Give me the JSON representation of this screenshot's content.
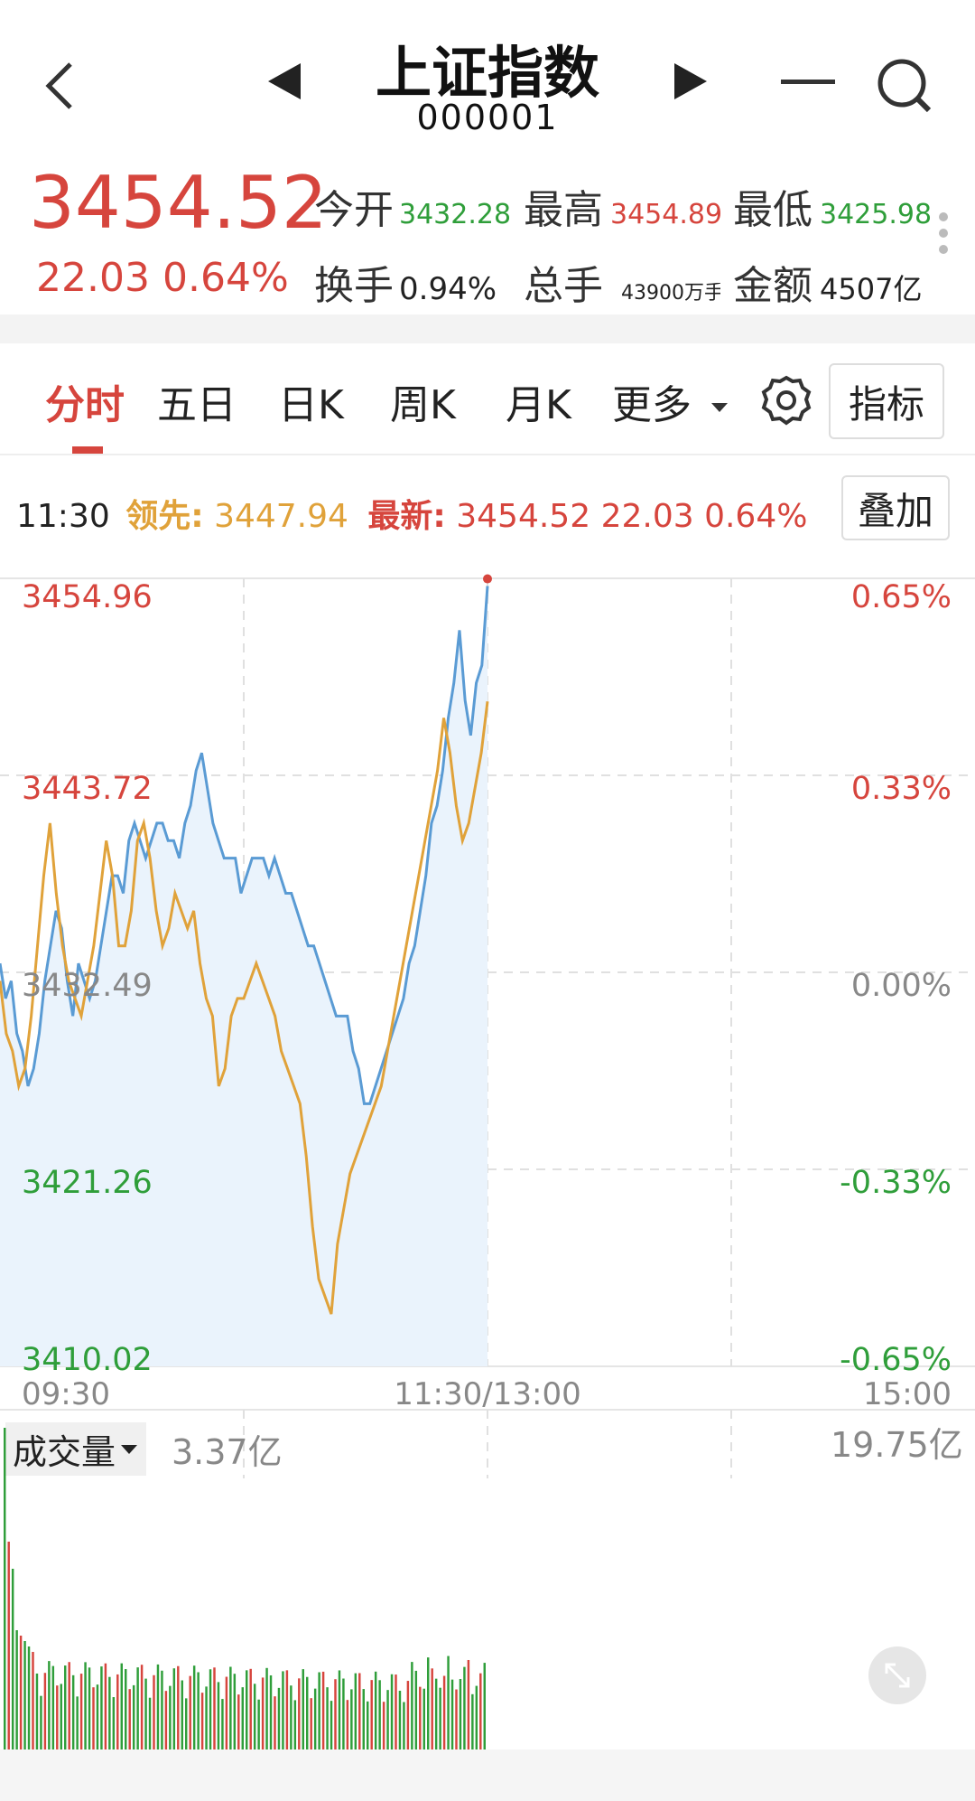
{
  "header": {
    "title": "上证指数",
    "code": "000001"
  },
  "quote": {
    "price": "3454.52",
    "change": "22.03",
    "change_pct": "0.64%",
    "open_label": "今开",
    "open_value": "3432.28",
    "high_label": "最高",
    "high_value": "3454.89",
    "low_label": "最低",
    "low_value": "3425.98",
    "turnover_label": "换手",
    "turnover_value": "0.94%",
    "volume_label": "总手",
    "volume_value": "43900万手",
    "amount_label": "金额",
    "amount_value": "4507亿"
  },
  "tabs": [
    {
      "label": "分时",
      "active": true
    },
    {
      "label": "五日"
    },
    {
      "label": "日K"
    },
    {
      "label": "周K"
    },
    {
      "label": "月K"
    },
    {
      "label": "更多"
    }
  ],
  "indicator_button": "指标",
  "info_bar": {
    "time": "11:30",
    "lead_label": "领先:",
    "lead_value": "3447.94",
    "latest_label": "最新:",
    "latest_value": "3454.52 22.03 0.64%",
    "overlay_button": "叠加"
  },
  "chart_data": {
    "type": "line",
    "y_left_ticks": [
      "3454.96",
      "3443.72",
      "3432.49",
      "3421.26",
      "3410.02"
    ],
    "y_right_ticks": [
      "0.65%",
      "0.33%",
      "0.00%",
      "-0.33%",
      "-0.65%"
    ],
    "x_ticks": [
      "09:30",
      "11:30/13:00",
      "15:00"
    ],
    "ylim": [
      3410.02,
      3454.96
    ],
    "series": [
      {
        "values": [
          3433,
          3431,
          3432,
          3429,
          3428,
          3426,
          3427,
          3429,
          3432,
          3434,
          3436,
          3435,
          3432,
          3430,
          3433,
          3432,
          3431,
          3432,
          3434,
          3436,
          3438,
          3438,
          3437,
          3440,
          3441,
          3440,
          3439,
          3440,
          3441,
          3441,
          3440,
          3440,
          3439,
          3441,
          3442,
          3444,
          3445,
          3443,
          3441,
          3440,
          3439,
          3439,
          3439,
          3437,
          3438,
          3439,
          3439,
          3439,
          3438,
          3439,
          3438,
          3437,
          3437,
          3436,
          3435,
          3434,
          3434,
          3433,
          3432,
          3431,
          3430,
          3430,
          3430,
          3428,
          3427,
          3425,
          3425,
          3426,
          3427,
          3428,
          3429,
          3430,
          3431,
          3433,
          3434,
          3436,
          3438,
          3441,
          3442,
          3444,
          3447,
          3449,
          3452,
          3448,
          3446,
          3449,
          3450,
          3454.52
        ],
        "color": "#5a9bd4"
      },
      {
        "values": [
          3432,
          3429,
          3428,
          3426,
          3427,
          3430,
          3434,
          3438,
          3441,
          3437,
          3434,
          3432,
          3431,
          3430,
          3432,
          3434,
          3437,
          3440,
          3438,
          3434,
          3434,
          3436,
          3440,
          3441,
          3439,
          3436,
          3434,
          3435,
          3437,
          3436,
          3435,
          3436,
          3433,
          3431,
          3430,
          3426,
          3427,
          3430,
          3431,
          3431,
          3432,
          3433,
          3432,
          3431,
          3430,
          3428,
          3427,
          3426,
          3425,
          3422,
          3418,
          3415,
          3414,
          3413,
          3417,
          3419,
          3421,
          3422,
          3423,
          3424,
          3425,
          3426,
          3428,
          3430,
          3432,
          3434,
          3436,
          3438,
          3440,
          3442,
          3444,
          3447,
          3445,
          3442,
          3440,
          3441,
          3443,
          3445,
          3447.94
        ],
        "color": "#e0a23a"
      }
    ],
    "volume": {
      "label": "成交量",
      "value": "3.37亿",
      "max_label": "19.75亿"
    }
  }
}
